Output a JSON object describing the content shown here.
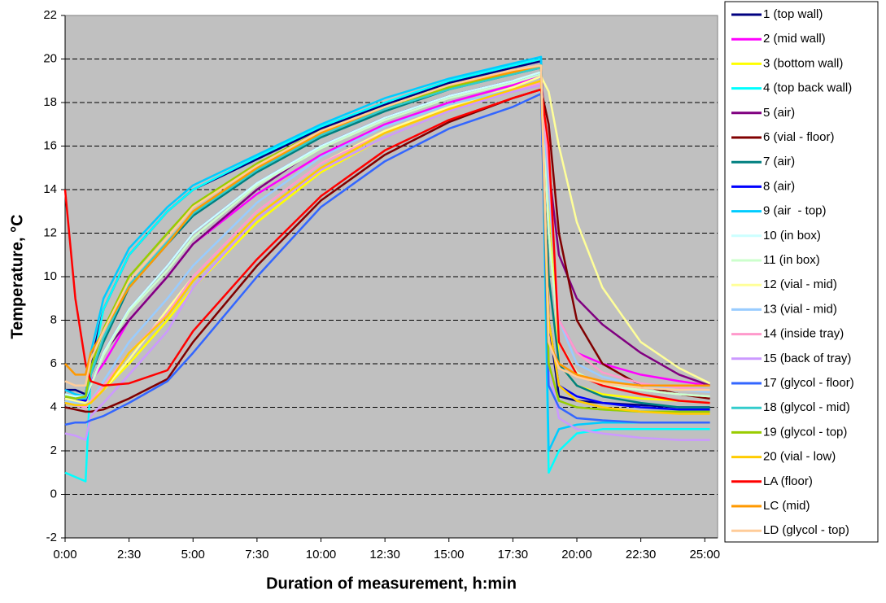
{
  "chart_data": {
    "type": "line",
    "x_label": "Duration of measurement, h:min",
    "y_label": "Temperature, °C",
    "xlim": [
      0,
      25.5
    ],
    "ylim": [
      -2,
      22
    ],
    "xticks": [
      {
        "value": 0,
        "label": "0:00"
      },
      {
        "value": 2.5,
        "label": "2:30"
      },
      {
        "value": 5,
        "label": "5:00"
      },
      {
        "value": 7.5,
        "label": "7:30"
      },
      {
        "value": 10,
        "label": "10:00"
      },
      {
        "value": 12.5,
        "label": "12:30"
      },
      {
        "value": 15,
        "label": "15:00"
      },
      {
        "value": 17.5,
        "label": "17:30"
      },
      {
        "value": 20,
        "label": "20:00"
      },
      {
        "value": 22.5,
        "label": "22:30"
      },
      {
        "value": 25,
        "label": "25:00"
      }
    ],
    "yticks": [
      -2,
      0,
      2,
      4,
      6,
      8,
      10,
      12,
      14,
      16,
      18,
      20,
      22
    ],
    "grid": true,
    "legend": "right",
    "x": [
      0,
      0.4,
      0.8,
      1,
      1.5,
      2.5,
      4,
      5,
      7.5,
      10,
      12.5,
      15,
      17.5,
      18.6,
      18.9,
      19.3,
      20,
      21,
      22.5,
      24,
      25.2
    ],
    "series": [
      {
        "name": "1 (top wall)",
        "color": "#000080",
        "values": [
          4.8,
          4.8,
          4.6,
          6,
          8.5,
          11,
          13,
          14,
          15.4,
          16.8,
          17.9,
          18.9,
          19.6,
          19.9,
          8,
          4.5,
          4.3,
          4.2,
          4.1,
          4,
          4
        ]
      },
      {
        "name": "2 (mid wall)",
        "color": "#ff00ff",
        "values": [
          4.5,
          4.4,
          4.5,
          5.2,
          6,
          8,
          10,
          11.5,
          13.8,
          15.6,
          17,
          18,
          18.8,
          19.2,
          12,
          8,
          6.5,
          6,
          5.5,
          5.2,
          5
        ]
      },
      {
        "name": "3 (bottom wall)",
        "color": "#ffff00",
        "values": [
          4.3,
          4.2,
          4.1,
          4.3,
          4.8,
          6,
          8,
          9.5,
          12.5,
          14.8,
          16.4,
          17.6,
          18.5,
          18.9,
          14,
          6,
          5,
          4.6,
          4.4,
          4.3,
          4.2
        ]
      },
      {
        "name": "4 (top back wall)",
        "color": "#00ffff",
        "values": [
          1,
          0.8,
          0.6,
          5.5,
          8.5,
          11,
          13,
          14,
          15.5,
          16.9,
          18,
          19,
          19.7,
          20,
          1,
          2,
          2.8,
          3,
          3,
          3,
          3
        ]
      },
      {
        "name": "5 (air)",
        "color": "#800080",
        "values": [
          4.5,
          4.4,
          4.3,
          5,
          6.5,
          8,
          10,
          11.5,
          14,
          16,
          17.3,
          18.3,
          19,
          19.3,
          15,
          11,
          9,
          7.8,
          6.5,
          5.5,
          5
        ]
      },
      {
        "name": "6 (vial - floor)",
        "color": "#800000",
        "values": [
          4,
          3.9,
          3.8,
          3.8,
          3.9,
          4.4,
          5.3,
          7,
          10.5,
          13.5,
          15.6,
          17.1,
          18.2,
          18.6,
          17,
          12,
          8,
          6,
          5,
          4.6,
          4.4
        ]
      },
      {
        "name": "7 (air)",
        "color": "#008080",
        "values": [
          4.6,
          4.5,
          4.4,
          5.5,
          7,
          9.5,
          11.5,
          12.8,
          14.8,
          16.4,
          17.6,
          18.6,
          19.3,
          19.6,
          10,
          6,
          5,
          4.5,
          4.2,
          4,
          4
        ]
      },
      {
        "name": "8 (air)",
        "color": "#0000ff",
        "values": [
          4.5,
          4.4,
          4.3,
          5,
          6.5,
          8.5,
          10.5,
          12,
          14.3,
          16,
          17.3,
          18.3,
          19,
          19.3,
          8,
          5,
          4.5,
          4.2,
          4,
          3.9,
          3.9
        ]
      },
      {
        "name": "9 (air  - top)",
        "color": "#00ccff",
        "values": [
          4.8,
          4.6,
          4.5,
          6.5,
          9,
          11.3,
          13.2,
          14.2,
          15.6,
          17,
          18.2,
          19.1,
          19.8,
          20.1,
          2,
          3,
          3.2,
          3.3,
          3.3,
          3.3,
          3.3
        ]
      },
      {
        "name": "10 (in box)",
        "color": "#ccffff",
        "values": [
          4.6,
          4.5,
          4.5,
          5,
          6.5,
          8.5,
          10.5,
          12,
          14.3,
          16,
          17.3,
          18.3,
          19,
          19.4,
          12,
          7,
          5.5,
          5,
          4.8,
          4.6,
          4.5
        ]
      },
      {
        "name": "11 (in box)",
        "color": "#ccffcc",
        "values": [
          4.5,
          4.4,
          4.4,
          5,
          6.4,
          8.4,
          10.3,
          11.8,
          14.2,
          15.9,
          17.2,
          18.2,
          18.9,
          19.3,
          12,
          7,
          5.6,
          5,
          4.8,
          4.6,
          4.5
        ]
      },
      {
        "name": "12 (vial - mid)",
        "color": "#ffff99",
        "values": [
          4.4,
          4.3,
          4.2,
          4.3,
          4.8,
          6.2,
          8.5,
          10,
          13,
          15.2,
          16.7,
          17.8,
          18.7,
          19.2,
          18.5,
          16,
          12.5,
          9.5,
          7,
          5.8,
          5.1
        ]
      },
      {
        "name": "13 (vial - mid)",
        "color": "#99ccff",
        "values": [
          4.3,
          4.2,
          4.1,
          4.3,
          5.2,
          7,
          9,
          10.5,
          13.4,
          15.5,
          16.9,
          17.9,
          18.6,
          19,
          14,
          8,
          6,
          5.4,
          5,
          4.8,
          4.7
        ]
      },
      {
        "name": "14 (inside tray)",
        "color": "#ff99cc",
        "values": [
          4.2,
          4.1,
          4,
          4.3,
          5,
          6.5,
          8.3,
          10,
          13,
          15.2,
          16.6,
          17.7,
          18.5,
          18.9,
          15,
          8,
          6.5,
          5.6,
          5.1,
          4.9,
          4.8
        ]
      },
      {
        "name": "15 (back of tray)",
        "color": "#cc99ff",
        "values": [
          2.8,
          2.7,
          2.5,
          3.6,
          4.2,
          5.5,
          7.5,
          9.5,
          12.7,
          14.9,
          16.4,
          17.6,
          18.5,
          18.8,
          6,
          3.5,
          3,
          2.8,
          2.6,
          2.5,
          2.5
        ]
      },
      {
        "name": "17 (glycol - floor)",
        "color": "#3366ff",
        "values": [
          3.2,
          3.3,
          3.3,
          3.4,
          3.6,
          4.2,
          5.2,
          6.5,
          10,
          13.2,
          15.3,
          16.8,
          17.8,
          18.4,
          5,
          4,
          3.5,
          3.4,
          3.3,
          3.3,
          3.3
        ]
      },
      {
        "name": "18 (glycol - mid)",
        "color": "#33cccc",
        "values": [
          4.5,
          4.4,
          4.4,
          5.5,
          7.2,
          9.6,
          11.6,
          12.9,
          14.9,
          16.5,
          17.7,
          18.6,
          19.3,
          19.6,
          6,
          4.3,
          4,
          3.9,
          3.8,
          3.8,
          3.8
        ]
      },
      {
        "name": "19 (glycol - top)",
        "color": "#99cc00",
        "values": [
          4.5,
          4.4,
          4.5,
          5.8,
          7.6,
          10,
          12,
          13.3,
          15.2,
          16.7,
          17.8,
          18.7,
          19.4,
          19.7,
          6,
          4.3,
          4,
          3.9,
          3.8,
          3.8,
          3.8
        ]
      },
      {
        "name": "20 (vial - low)",
        "color": "#ffcc00",
        "values": [
          4.2,
          4.1,
          4.1,
          4.2,
          4.8,
          6.5,
          8.2,
          9.8,
          12.8,
          15,
          16.6,
          17.7,
          18.6,
          19,
          8,
          5,
          4.3,
          4,
          3.8,
          3.7,
          3.7
        ]
      },
      {
        "name": "LA (floor)",
        "color": "#ff0000",
        "values": [
          14,
          9,
          6,
          5.2,
          5,
          5.1,
          5.7,
          7.5,
          10.8,
          13.7,
          15.8,
          17.2,
          18.2,
          18.6,
          16,
          7,
          5.5,
          5,
          4.6,
          4.3,
          4.2
        ]
      },
      {
        "name": "LC (mid)",
        "color": "#ff9900",
        "values": [
          6,
          5.5,
          5.5,
          6.5,
          7.5,
          9.5,
          11.5,
          13,
          15,
          16.6,
          17.8,
          18.8,
          19.4,
          19.7,
          7,
          6,
          5.5,
          5.2,
          5,
          5,
          5
        ]
      },
      {
        "name": "LD (glycol - top)",
        "color": "#ffcc99",
        "values": [
          5.2,
          5,
          5,
          6.2,
          7.5,
          9.8,
          11.8,
          13.2,
          15.1,
          16.7,
          17.8,
          18.8,
          19.5,
          19.7,
          7,
          5.8,
          5.4,
          5.1,
          4.9,
          4.8,
          4.8
        ]
      }
    ]
  }
}
